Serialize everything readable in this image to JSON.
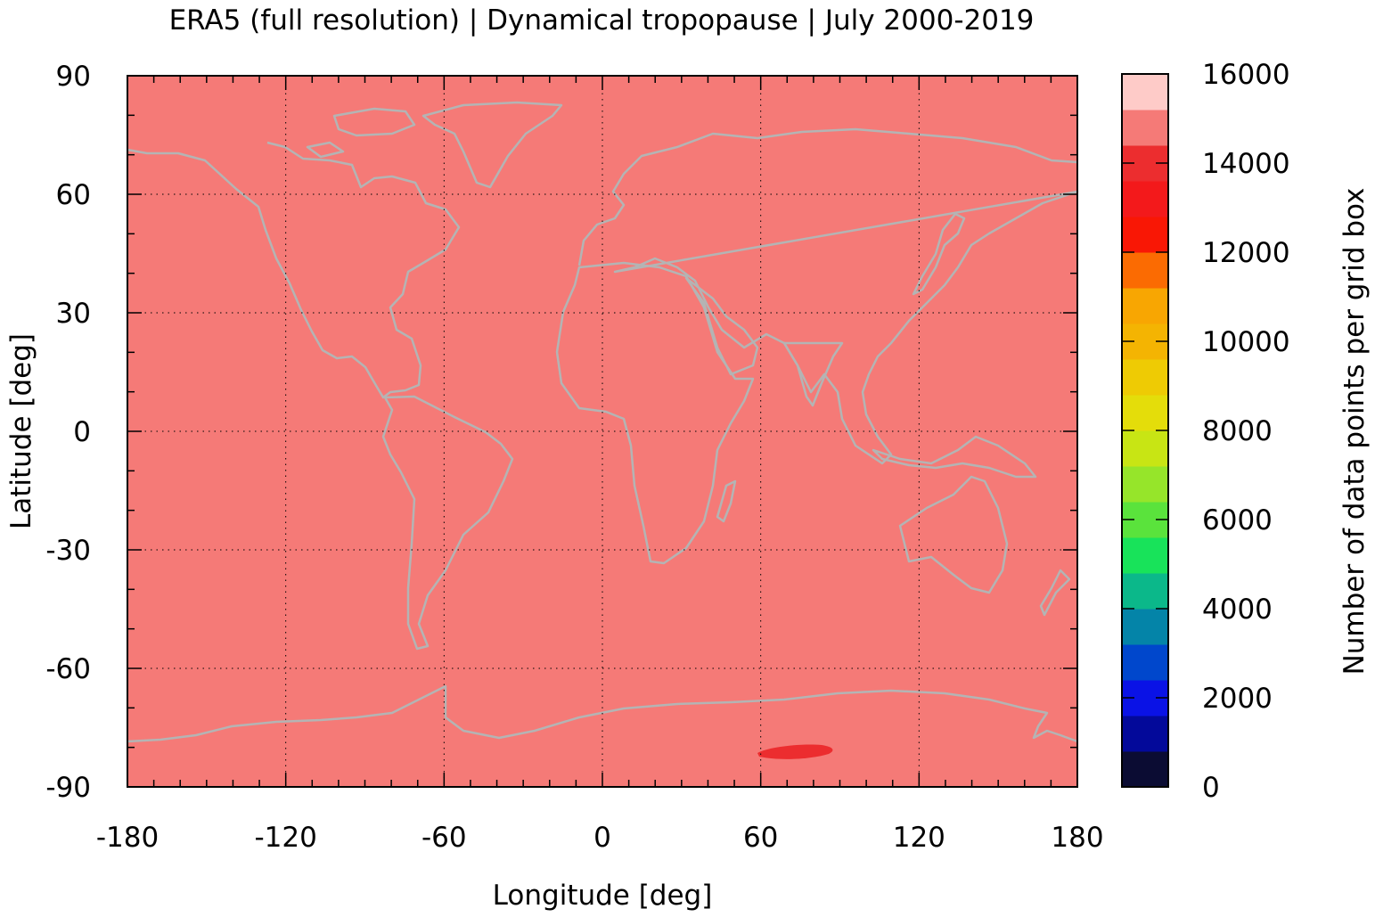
{
  "chart_data": {
    "type": "heatmap",
    "title": "ERA5 (full resolution) | Dynamical tropopause | July 2000-2019",
    "xlabel": "Longitude [deg]",
    "ylabel": "Latitude [deg]",
    "xlim": [
      -180,
      180
    ],
    "ylim": [
      -90,
      90
    ],
    "x_ticks": [
      -180,
      -120,
      -60,
      0,
      60,
      120,
      180
    ],
    "y_ticks": [
      90,
      60,
      30,
      0,
      -30,
      -60,
      -90
    ],
    "x_tick_labels": [
      "-180",
      "-120",
      "-60",
      "0",
      "60",
      "120",
      "180"
    ],
    "y_tick_labels": [
      "90",
      "60",
      "30",
      "0",
      "-30",
      "-60",
      "-90"
    ],
    "grid": true,
    "field": {
      "background_value": 14800,
      "anomaly": {
        "lon_range": [
          58,
          87
        ],
        "lat_range": [
          -82,
          -79
        ],
        "value": 13300
      }
    },
    "colorbar": {
      "label": "Number of data points per grid box",
      "range": [
        0,
        16000
      ],
      "ticks": [
        0,
        2000,
        4000,
        6000,
        8000,
        10000,
        12000,
        14000,
        16000
      ],
      "tick_labels": [
        "0",
        "2000",
        "4000",
        "6000",
        "8000",
        "10000",
        "12000",
        "14000",
        "16000"
      ],
      "levels": [
        0,
        800,
        1600,
        2400,
        3200,
        4000,
        4800,
        5600,
        6400,
        7200,
        8000,
        8800,
        9600,
        10400,
        11200,
        12000,
        12800,
        13600,
        14400,
        15200,
        16000
      ],
      "colors": [
        "#0b0c33",
        "#03099a",
        "#0a12e6",
        "#0047cc",
        "#0484a8",
        "#0bb88a",
        "#18e35a",
        "#5ae33c",
        "#96e52a",
        "#c8e514",
        "#e4dd0a",
        "#eecb04",
        "#f4b402",
        "#f8a602",
        "#fb6b02",
        "#f91705",
        "#f3191b",
        "#ec2d2f",
        "#f57a77",
        "#fecbc8"
      ]
    }
  }
}
